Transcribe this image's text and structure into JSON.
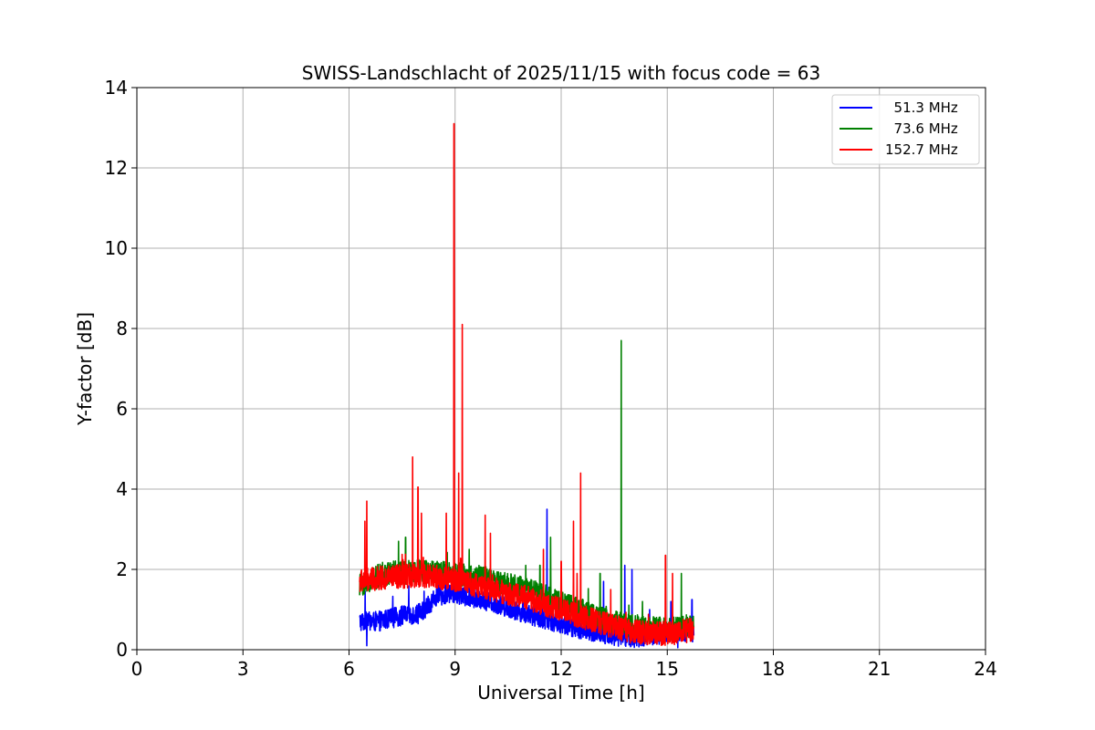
{
  "chart_data": {
    "type": "line",
    "title": "SWISS-Landschlacht of 2025/11/15 with focus code = 63",
    "xlabel": "Universal Time [h]",
    "ylabel": "Y-factor [dB]",
    "xlim": [
      0,
      24
    ],
    "ylim": [
      0,
      14
    ],
    "xticks": [
      0,
      3,
      6,
      9,
      12,
      15,
      18,
      21,
      24
    ],
    "yticks": [
      0,
      2,
      4,
      6,
      8,
      10,
      12,
      14
    ],
    "grid": true,
    "legend_position": "top-right",
    "series": [
      {
        "name": "51.3 MHz",
        "legend_label": "  51.3 MHz",
        "color": "#0000ff",
        "start": 6.3,
        "end": 15.75,
        "baseline": [
          [
            6.3,
            0.7
          ],
          [
            6.8,
            0.7
          ],
          [
            7.5,
            0.85
          ],
          [
            8.0,
            0.9
          ],
          [
            8.5,
            1.35
          ],
          [
            9.0,
            1.4
          ],
          [
            10.0,
            1.2
          ],
          [
            11.0,
            0.9
          ],
          [
            12.0,
            0.65
          ],
          [
            13.0,
            0.4
          ],
          [
            14.0,
            0.3
          ],
          [
            15.0,
            0.4
          ],
          [
            15.75,
            0.45
          ]
        ],
        "noise": 0.25,
        "spikes": [
          [
            6.5,
            0.1
          ],
          [
            11.6,
            3.5
          ],
          [
            13.2,
            1.7
          ],
          [
            13.8,
            2.1
          ],
          [
            14.0,
            2.0
          ],
          [
            14.5,
            1.0
          ],
          [
            15.1,
            1.2
          ],
          [
            15.7,
            1.25
          ],
          [
            15.3,
            0.05
          ],
          [
            14.3,
            0.1
          ]
        ]
      },
      {
        "name": "73.6 MHz",
        "legend_label": "  73.6 MHz",
        "color": "#008000",
        "start": 6.3,
        "end": 15.75,
        "baseline": [
          [
            6.3,
            1.6
          ],
          [
            7.0,
            1.9
          ],
          [
            8.0,
            1.95
          ],
          [
            9.0,
            1.9
          ],
          [
            10.0,
            1.75
          ],
          [
            11.0,
            1.5
          ],
          [
            12.0,
            1.2
          ],
          [
            13.0,
            0.8
          ],
          [
            14.0,
            0.6
          ],
          [
            15.0,
            0.5
          ],
          [
            15.75,
            0.55
          ]
        ],
        "noise": 0.3,
        "spikes": [
          [
            7.4,
            2.7
          ],
          [
            7.6,
            2.8
          ],
          [
            9.4,
            2.5
          ],
          [
            11.0,
            2.1
          ],
          [
            11.4,
            2.1
          ],
          [
            11.7,
            2.8
          ],
          [
            13.1,
            1.9
          ],
          [
            13.7,
            7.7
          ],
          [
            14.3,
            1.2
          ],
          [
            15.4,
            1.9
          ]
        ]
      },
      {
        "name": "152.7 MHz",
        "legend_label": "152.7 MHz",
        "color": "#ff0000",
        "start": 6.3,
        "end": 15.75,
        "baseline": [
          [
            6.3,
            1.7
          ],
          [
            7.0,
            1.8
          ],
          [
            8.0,
            1.85
          ],
          [
            9.0,
            1.75
          ],
          [
            10.0,
            1.5
          ],
          [
            11.0,
            1.3
          ],
          [
            12.0,
            1.0
          ],
          [
            13.0,
            0.7
          ],
          [
            14.0,
            0.45
          ],
          [
            15.0,
            0.4
          ],
          [
            15.75,
            0.5
          ]
        ],
        "noise": 0.3,
        "spikes": [
          [
            6.5,
            3.7
          ],
          [
            6.45,
            3.2
          ],
          [
            7.8,
            4.8
          ],
          [
            7.95,
            4.05
          ],
          [
            8.05,
            3.4
          ],
          [
            8.75,
            3.4
          ],
          [
            8.97,
            13.1
          ],
          [
            9.1,
            4.4
          ],
          [
            9.2,
            8.1
          ],
          [
            9.85,
            3.35
          ],
          [
            10.0,
            2.9
          ],
          [
            11.5,
            2.5
          ],
          [
            12.0,
            2.2
          ],
          [
            12.35,
            3.2
          ],
          [
            12.45,
            1.9
          ],
          [
            12.55,
            4.4
          ],
          [
            13.4,
            1.5
          ],
          [
            14.95,
            2.35
          ],
          [
            15.15,
            1.9
          ]
        ]
      }
    ]
  }
}
